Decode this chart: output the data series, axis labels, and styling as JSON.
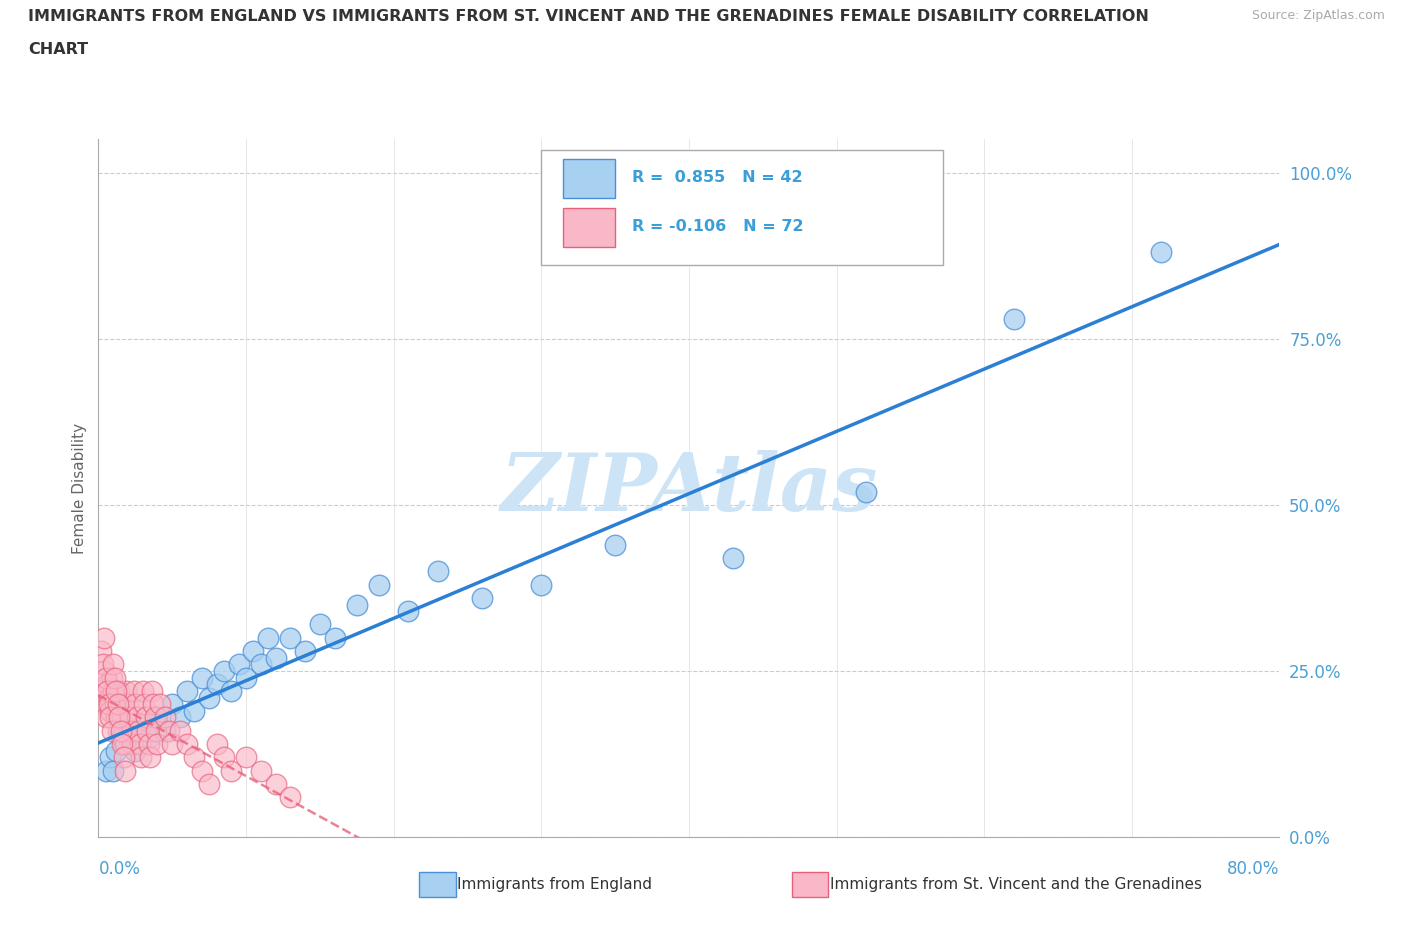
{
  "title_line1": "IMMIGRANTS FROM ENGLAND VS IMMIGRANTS FROM ST. VINCENT AND THE GRENADINES FEMALE DISABILITY CORRELATION",
  "title_line2": "CHART",
  "source": "Source: ZipAtlas.com",
  "ylabel": "Female Disability",
  "ytick_positions": [
    0.0,
    0.25,
    0.5,
    0.75,
    1.0
  ],
  "ytick_labels": [
    "0.0%",
    "25.0%",
    "50.0%",
    "75.0%",
    "100.0%"
  ],
  "xlim": [
    0.0,
    0.8
  ],
  "ylim": [
    0.0,
    1.05
  ],
  "england_R": 0.855,
  "england_N": 42,
  "svg_R": -0.106,
  "svg_N": 72,
  "blue_fill": "#a8d0f0",
  "blue_edge": "#4a90d9",
  "pink_fill": "#f9b8c8",
  "pink_edge": "#e8607a",
  "blue_line": "#2b7fd4",
  "pink_line": "#e8607a",
  "watermark_color": "#cce4f6",
  "england_x": [
    0.005,
    0.008,
    0.01,
    0.012,
    0.015,
    0.018,
    0.02,
    0.025,
    0.03,
    0.035,
    0.04,
    0.045,
    0.05,
    0.055,
    0.06,
    0.065,
    0.07,
    0.075,
    0.08,
    0.085,
    0.09,
    0.095,
    0.1,
    0.105,
    0.11,
    0.115,
    0.12,
    0.13,
    0.14,
    0.15,
    0.16,
    0.175,
    0.19,
    0.21,
    0.23,
    0.26,
    0.3,
    0.35,
    0.43,
    0.52,
    0.62,
    0.72
  ],
  "england_y": [
    0.1,
    0.12,
    0.1,
    0.13,
    0.15,
    0.14,
    0.16,
    0.13,
    0.17,
    0.15,
    0.18,
    0.16,
    0.2,
    0.18,
    0.22,
    0.19,
    0.24,
    0.21,
    0.23,
    0.25,
    0.22,
    0.26,
    0.24,
    0.28,
    0.26,
    0.3,
    0.27,
    0.3,
    0.28,
    0.32,
    0.3,
    0.35,
    0.38,
    0.34,
    0.4,
    0.36,
    0.38,
    0.44,
    0.42,
    0.52,
    0.78,
    0.88
  ],
  "svg_x": [
    0.002,
    0.003,
    0.004,
    0.005,
    0.006,
    0.007,
    0.008,
    0.009,
    0.01,
    0.011,
    0.012,
    0.013,
    0.014,
    0.015,
    0.016,
    0.017,
    0.018,
    0.019,
    0.02,
    0.021,
    0.022,
    0.023,
    0.024,
    0.025,
    0.026,
    0.027,
    0.028,
    0.029,
    0.03,
    0.031,
    0.032,
    0.033,
    0.034,
    0.035,
    0.036,
    0.037,
    0.038,
    0.039,
    0.04,
    0.042,
    0.045,
    0.048,
    0.05,
    0.055,
    0.06,
    0.065,
    0.07,
    0.075,
    0.08,
    0.085,
    0.09,
    0.1,
    0.11,
    0.12,
    0.13,
    0.002,
    0.003,
    0.004,
    0.005,
    0.006,
    0.007,
    0.008,
    0.009,
    0.01,
    0.011,
    0.012,
    0.013,
    0.014,
    0.015,
    0.016,
    0.017,
    0.018
  ],
  "svg_y": [
    0.22,
    0.2,
    0.25,
    0.18,
    0.23,
    0.21,
    0.19,
    0.24,
    0.22,
    0.2,
    0.18,
    0.16,
    0.22,
    0.2,
    0.18,
    0.16,
    0.14,
    0.22,
    0.2,
    0.18,
    0.16,
    0.14,
    0.22,
    0.2,
    0.18,
    0.16,
    0.14,
    0.12,
    0.22,
    0.2,
    0.18,
    0.16,
    0.14,
    0.12,
    0.22,
    0.2,
    0.18,
    0.16,
    0.14,
    0.2,
    0.18,
    0.16,
    0.14,
    0.16,
    0.14,
    0.12,
    0.1,
    0.08,
    0.14,
    0.12,
    0.1,
    0.12,
    0.1,
    0.08,
    0.06,
    0.28,
    0.26,
    0.3,
    0.24,
    0.22,
    0.2,
    0.18,
    0.16,
    0.26,
    0.24,
    0.22,
    0.2,
    0.18,
    0.16,
    0.14,
    0.12,
    0.1
  ],
  "figsize": [
    14.06,
    9.3
  ],
  "dpi": 100
}
